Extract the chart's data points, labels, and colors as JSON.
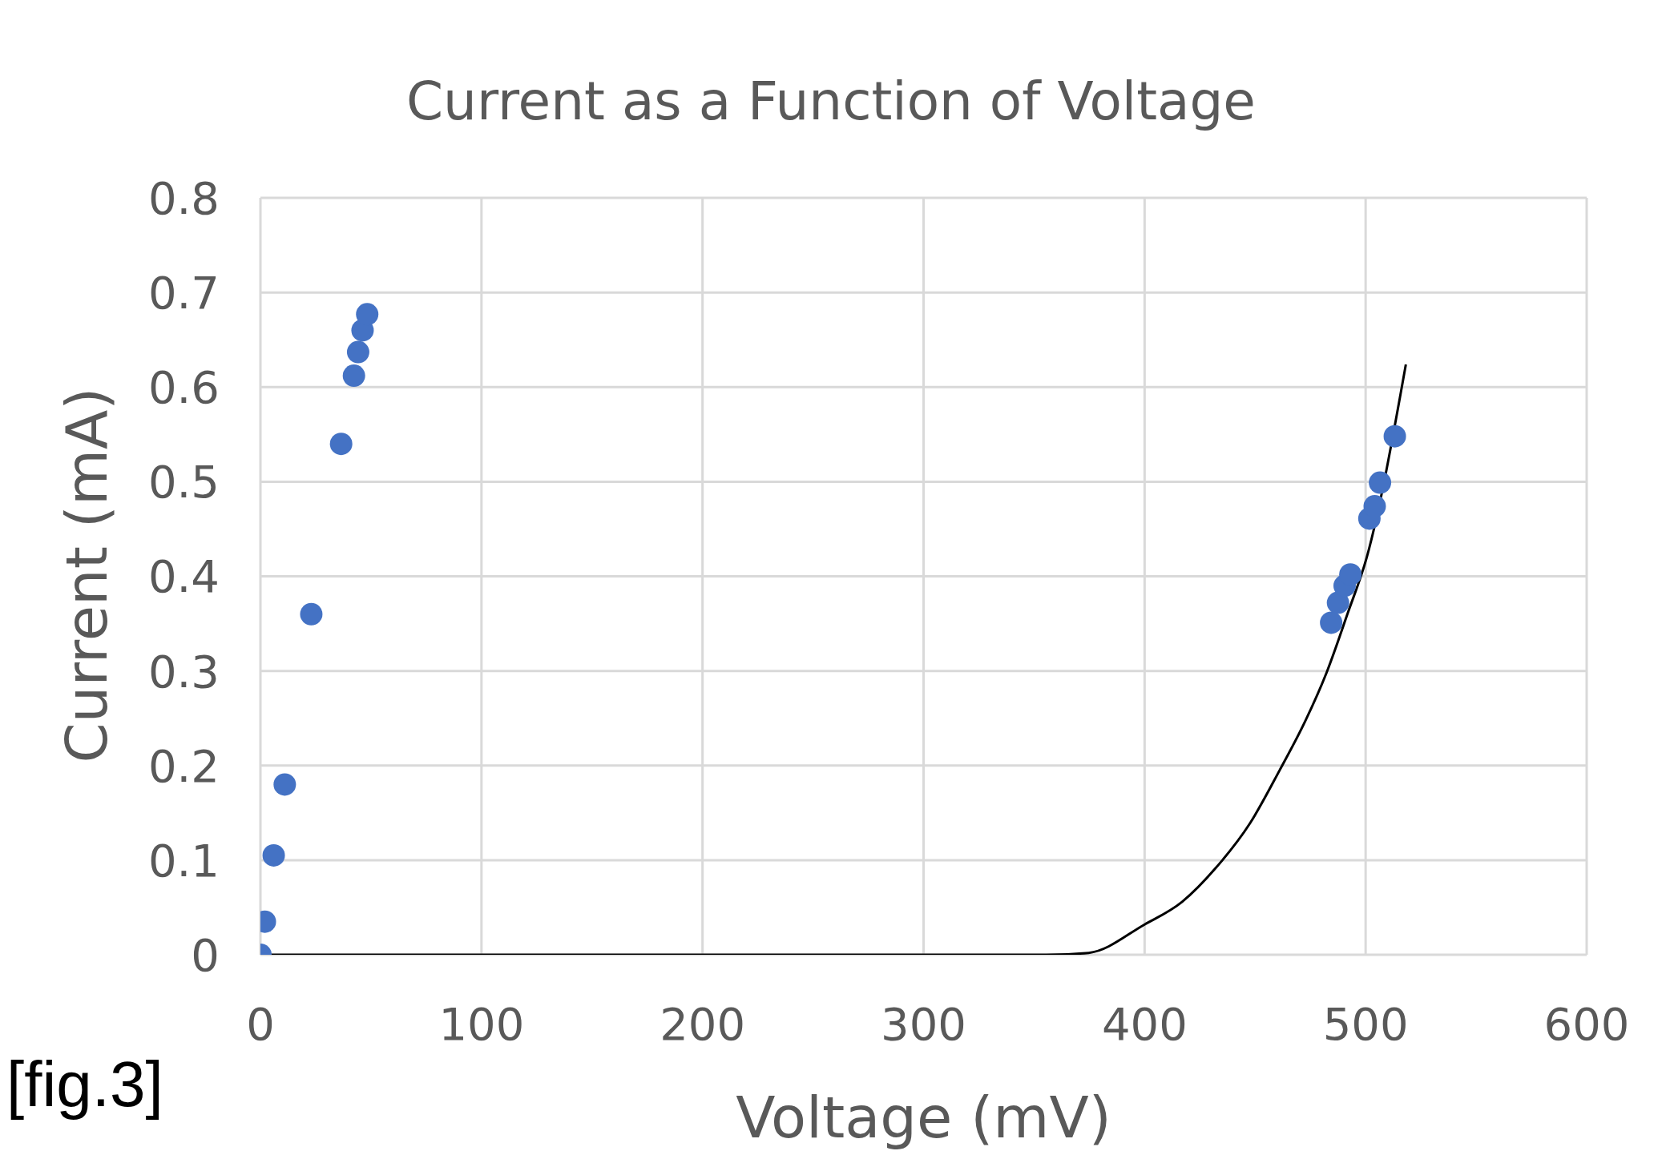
{
  "chart_data": {
    "type": "scatter",
    "title": "Current as a Function of Voltage",
    "xlabel": "Voltage (mV)",
    "ylabel": "Current (mA)",
    "annotations": [
      "[fig.3]"
    ],
    "series": [
      {
        "color": "#4472c4",
        "marker": "circle",
        "x": [
          0,
          2,
          6,
          11,
          23,
          36.5,
          42.3,
          44.2,
          46.2,
          48.3,
          484.4,
          487.5,
          490.5,
          493.1,
          501.7,
          504.1,
          506.5,
          513.2
        ],
        "values": [
          0,
          0.035,
          0.105,
          0.18,
          0.36,
          0.54,
          0.612,
          0.637,
          0.66,
          0.677,
          0.351,
          0.372,
          0.39,
          0.402,
          0.461,
          0.474,
          0.499,
          0.548
        ]
      },
      {
        "type": "line",
        "color": "#000000",
        "marker": "none",
        "line_style": "solid",
        "x": [
          0,
          342,
          355.5,
          374.7,
          400,
          417,
          432.3,
          447.7,
          461.1,
          472.7,
          482.3,
          491.9,
          500.5,
          518.2
        ],
        "values": [
          0,
          0,
          0,
          0.002,
          0.032,
          0.056,
          0.092,
          0.139,
          0.195,
          0.247,
          0.298,
          0.361,
          0.42,
          0.624
        ]
      }
    ],
    "xlim": [
      0,
      600
    ],
    "xticks": [
      0,
      100,
      200,
      300,
      400,
      500,
      600
    ],
    "ylim": [
      0,
      0.8
    ],
    "yticks": [
      0,
      0.1,
      0.2,
      0.3,
      0.4,
      0.5,
      0.6,
      0.7,
      0.8
    ],
    "grid": true
  }
}
